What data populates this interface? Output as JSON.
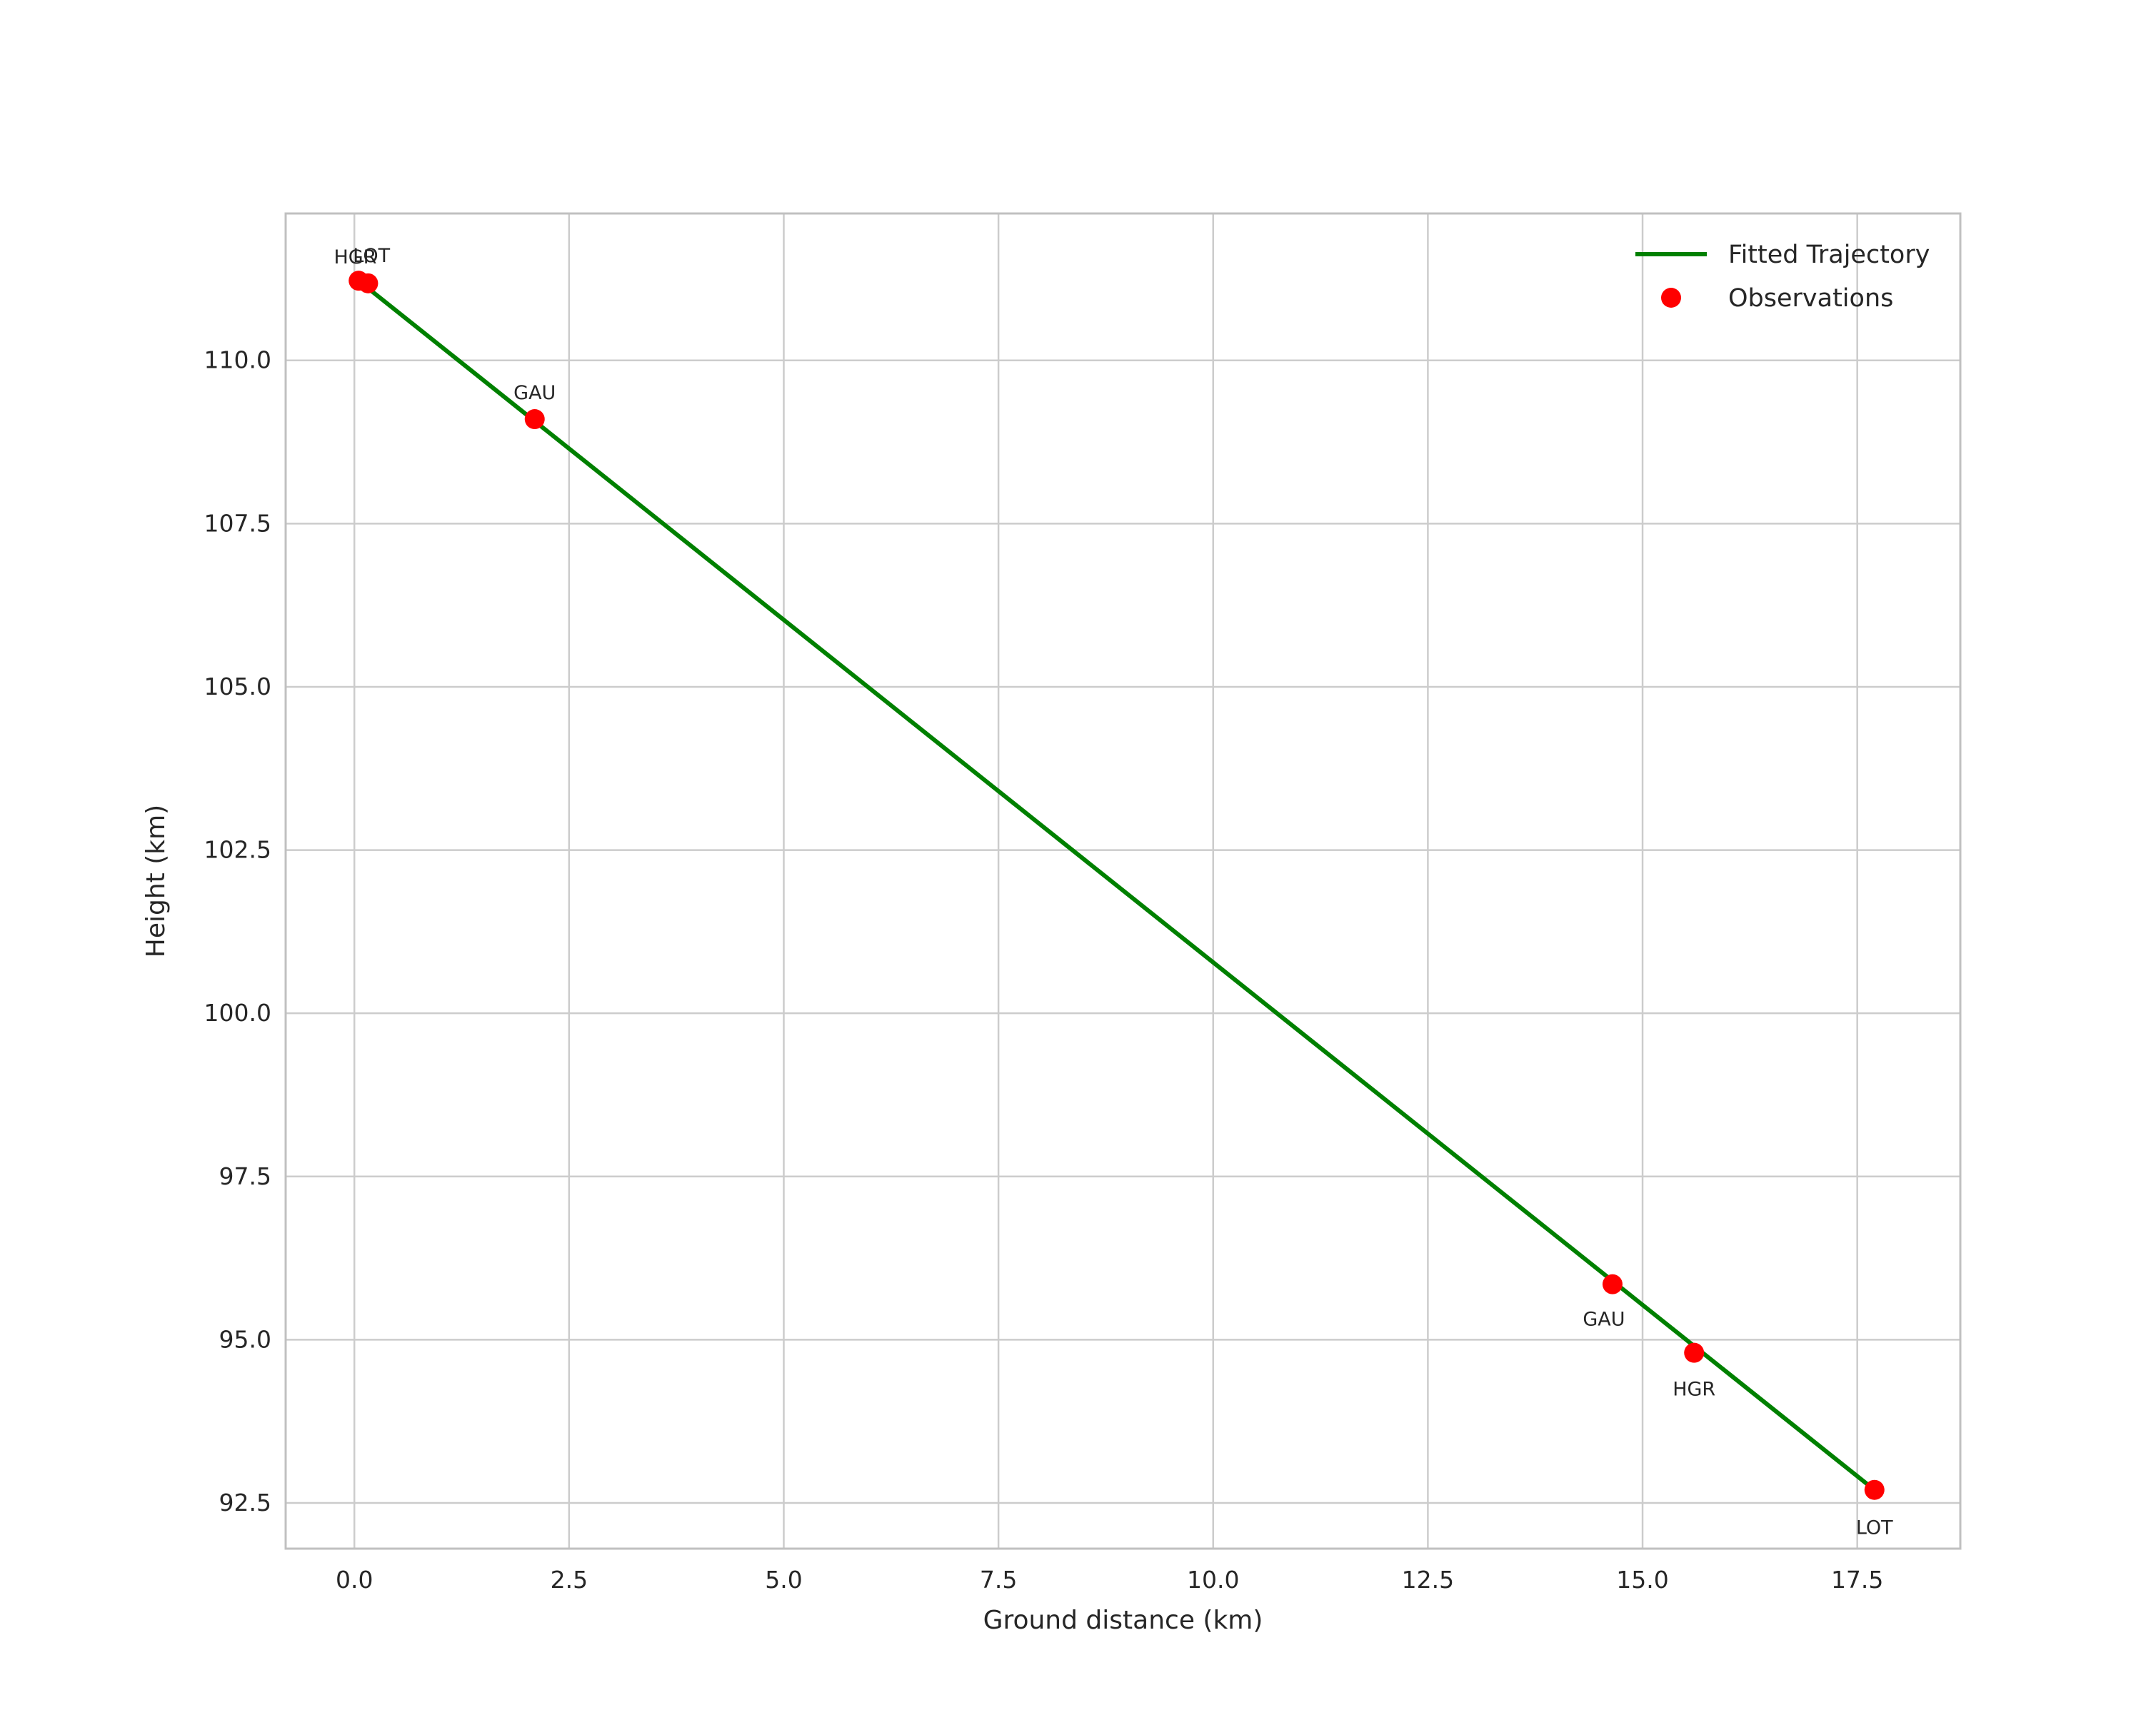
{
  "figure": {
    "background": "#ffffff",
    "grid_color": "#cccccc",
    "frame_color": "#c0c0c0",
    "text_color": "#262626"
  },
  "chart_data": {
    "type": "scatter",
    "title": "",
    "xlabel": "Ground distance (km)",
    "ylabel": "Height (km)",
    "xlim": [
      -0.8,
      18.7
    ],
    "ylim": [
      91.8,
      112.25
    ],
    "grid": true,
    "xticks": [
      0.0,
      2.5,
      5.0,
      7.5,
      10.0,
      12.5,
      15.0,
      17.5
    ],
    "xtick_labels": [
      "0.0",
      "2.5",
      "5.0",
      "7.5",
      "10.0",
      "12.5",
      "15.0",
      "17.5"
    ],
    "yticks": [
      92.5,
      95.0,
      97.5,
      100.0,
      102.5,
      105.0,
      107.5,
      110.0
    ],
    "ytick_labels": [
      "92.5",
      "95.0",
      "97.5",
      "100.0",
      "102.5",
      "105.0",
      "107.5",
      "110.0"
    ],
    "series": [
      {
        "name": "Fitted Trajectory",
        "type": "line",
        "color": "#008000",
        "x": [
          0.05,
          17.7
        ],
        "y": [
          111.22,
          92.7
        ]
      },
      {
        "name": "Observations",
        "type": "scatter",
        "color": "#ff0000",
        "points": [
          {
            "x": 0.05,
            "y": 111.22,
            "label": "LOT",
            "label_dx": 18,
            "label_dy": -26
          },
          {
            "x": 0.16,
            "y": 111.18,
            "label": "HGR",
            "label_dx": -18,
            "label_dy": -28
          },
          {
            "x": 2.1,
            "y": 109.1,
            "label": "GAU",
            "label_dx": 0,
            "label_dy": -28
          },
          {
            "x": 14.65,
            "y": 95.85,
            "label": "GAU",
            "label_dx": -12,
            "label_dy": 58
          },
          {
            "x": 15.6,
            "y": 94.8,
            "label": "HGR",
            "label_dx": 0,
            "label_dy": 60
          },
          {
            "x": 17.7,
            "y": 92.7,
            "label": "LOT",
            "label_dx": 0,
            "label_dy": 62
          }
        ]
      }
    ],
    "legend": {
      "position": "upper right",
      "entries": [
        {
          "label": "Fitted Trajectory",
          "marker": "line",
          "color": "#008000"
        },
        {
          "label": "Observations",
          "marker": "point",
          "color": "#ff0000"
        }
      ]
    }
  }
}
